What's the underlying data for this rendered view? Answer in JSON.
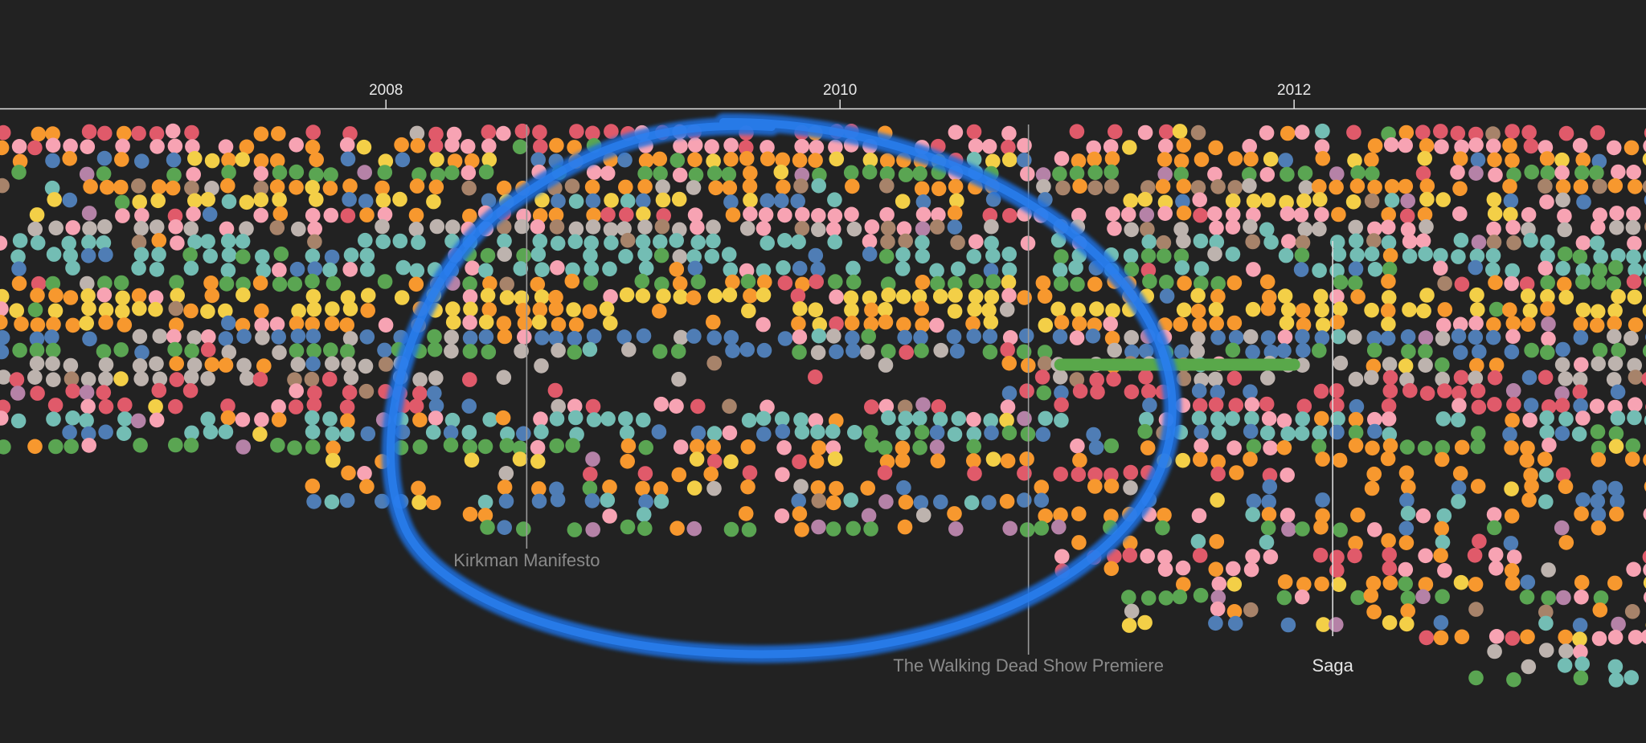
{
  "chart_data": {
    "type": "scatter",
    "title": "",
    "xlabel": "",
    "ylabel": "",
    "x_axis": {
      "ticks": [
        {
          "value": 2008,
          "label": "2008"
        },
        {
          "value": 2010,
          "label": "2010"
        },
        {
          "value": 2012,
          "label": "2012"
        }
      ],
      "range": [
        2006.3,
        2013.55
      ]
    },
    "annotations": [
      {
        "label": "Kirkman Manifesto",
        "x": 2008.62,
        "highlight": false
      },
      {
        "label": "The Walking Dead Show Premiere",
        "x": 2010.83,
        "highlight": false
      },
      {
        "label": "Saga",
        "x": 2012.17,
        "highlight": true
      }
    ],
    "highlight_line": {
      "x_start": 2010.97,
      "x_end": 2012.0
    },
    "palette": {
      "red": "#e05a6a",
      "pink": "#f7a3b3",
      "orange": "#f7982e",
      "yellow": "#f3cf47",
      "green": "#5aa552",
      "teal": "#73bdb4",
      "blue": "#4f7db5",
      "purple": "#b582a7",
      "brown": "#a7836a",
      "gray": "#bdb3ae",
      "line_green": "#59a84a",
      "circle_blue": "#1f6fe0",
      "axis": "#e0e0e0",
      "background": "#222222"
    }
  }
}
